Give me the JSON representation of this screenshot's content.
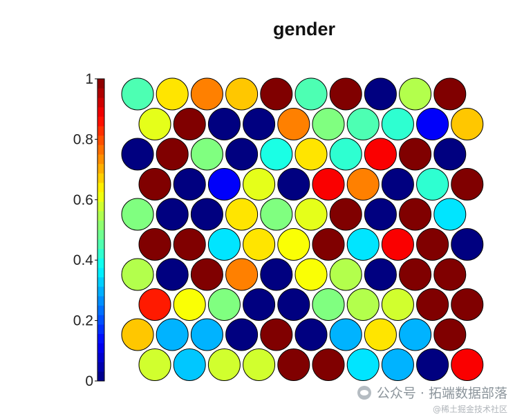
{
  "chart_data": {
    "type": "heatmap",
    "title": "gender",
    "colorbar": {
      "ticks": [
        "0",
        "0.2",
        "0.4",
        "0.6",
        "0.8",
        "1"
      ],
      "range": [
        0,
        1
      ],
      "steps": 32,
      "colormap": "jet"
    },
    "grid": {
      "rows": 10,
      "cols": 10,
      "layout": "hexagonal"
    },
    "rows": [
      [
        0.45,
        0.65,
        0.75,
        0.68,
        1.0,
        0.45,
        1.0,
        0.0,
        0.55,
        1.0
      ],
      [
        0.6,
        1.0,
        0.0,
        0.0,
        0.75,
        0.5,
        0.45,
        0.42,
        0.12,
        0.68
      ],
      [
        0.0,
        1.0,
        0.5,
        0.0,
        0.4,
        0.65,
        0.42,
        0.88,
        1.0,
        0.0
      ],
      [
        1.0,
        0.0,
        0.12,
        0.6,
        0.0,
        0.88,
        0.75,
        0.0,
        0.42,
        1.0
      ],
      [
        0.5,
        0.0,
        0.0,
        0.65,
        0.5,
        0.6,
        1.0,
        0.0,
        1.0,
        0.35
      ],
      [
        1.0,
        1.0,
        0.35,
        0.65,
        0.62,
        1.0,
        0.35,
        0.88,
        1.0,
        0.0
      ],
      [
        0.55,
        0.0,
        1.0,
        0.75,
        0.0,
        0.62,
        0.55,
        0.0,
        1.0,
        1.0
      ],
      [
        0.85,
        0.62,
        0.5,
        0.0,
        0.0,
        0.5,
        0.55,
        0.58,
        1.0,
        1.0
      ],
      [
        0.68,
        0.3,
        0.3,
        0.0,
        1.0,
        0.0,
        0.3,
        0.65,
        0.3,
        1.0
      ],
      [
        0.58,
        0.32,
        0.58,
        0.58,
        1.0,
        1.0,
        0.35,
        0.3,
        0.0,
        0.88
      ]
    ]
  },
  "watermark": {
    "line1": "公众号 · 拓端数据部落",
    "line2": "@稀土掘金技术社区"
  }
}
